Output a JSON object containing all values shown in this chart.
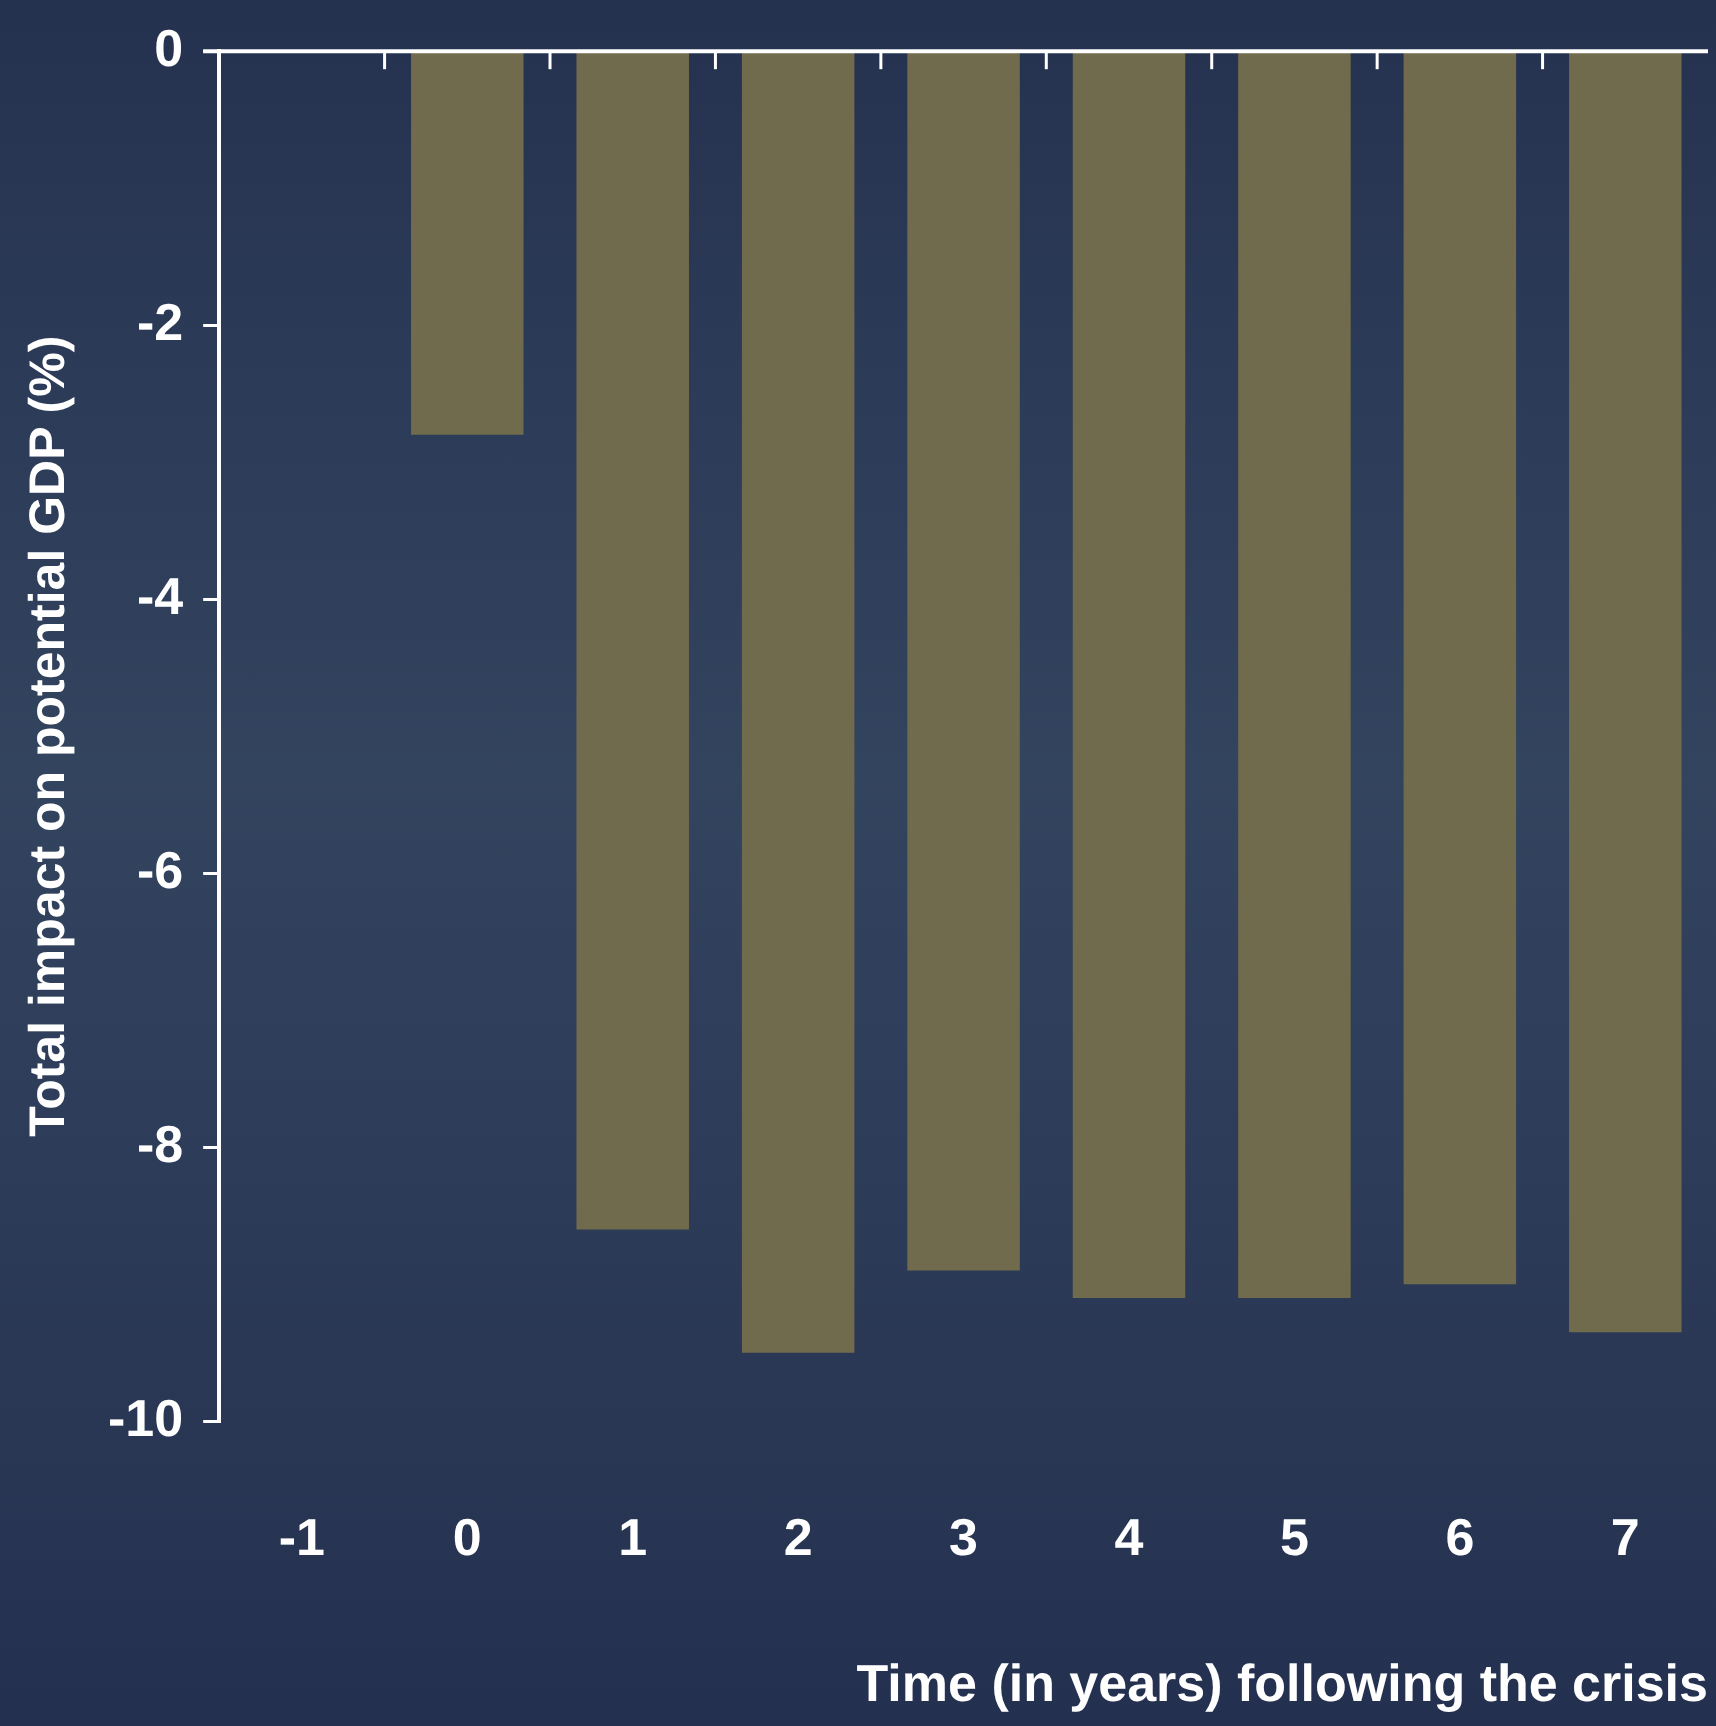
{
  "chart_data": {
    "type": "bar",
    "xlabel": "Time (in years) following the crisis",
    "ylabel": "Total impact on potential GDP (%)",
    "categories": [
      "-1",
      "0",
      "1",
      "2",
      "3",
      "4",
      "5",
      "6",
      "7"
    ],
    "values": [
      null,
      -2.8,
      -8.6,
      -9.5,
      -8.9,
      -9.1,
      -9.1,
      -9.0,
      -9.35
    ],
    "color": "#716b4d",
    "ylim": [
      -10,
      0
    ],
    "yticks": [
      -10,
      -8,
      -6,
      -4,
      -2,
      0
    ]
  }
}
